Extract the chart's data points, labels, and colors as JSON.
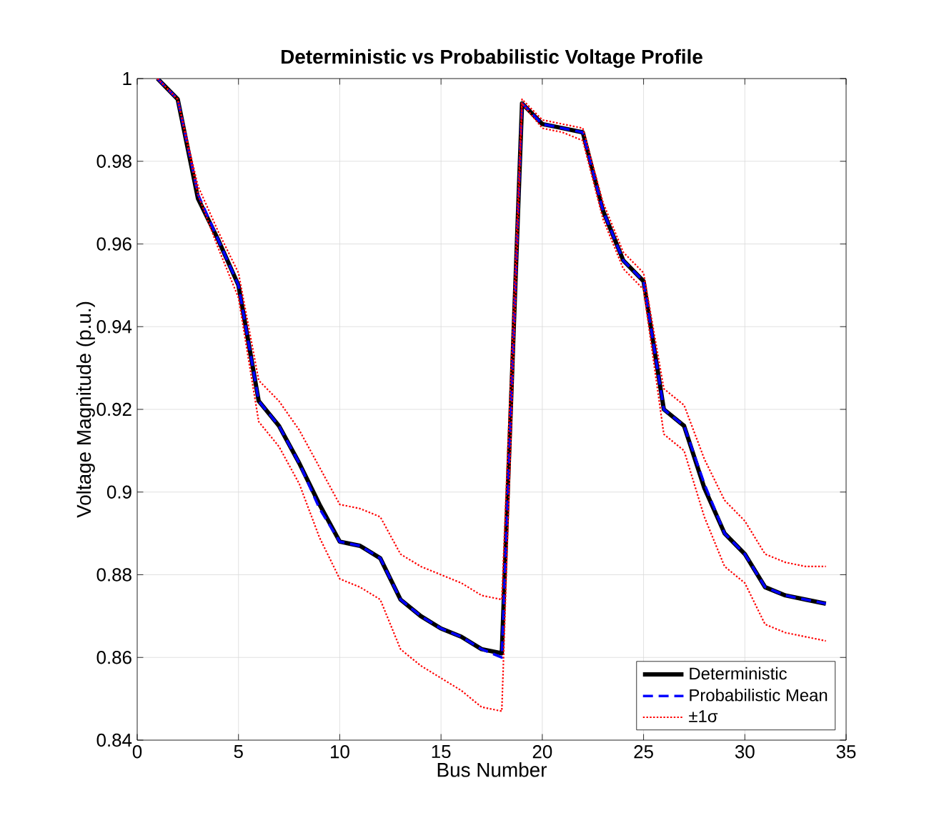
{
  "chart_data": {
    "type": "line",
    "title": "Deterministic vs Probabilistic Voltage Profile",
    "xlabel": "Bus Number",
    "ylabel": "Voltage Magnitude (p.u.)",
    "x": [
      1,
      2,
      3,
      4,
      5,
      6,
      7,
      8,
      9,
      10,
      11,
      12,
      13,
      14,
      15,
      16,
      17,
      18,
      19,
      20,
      21,
      22,
      23,
      24,
      25,
      26,
      27,
      28,
      29,
      30,
      31,
      32,
      33,
      34
    ],
    "series": [
      {
        "name": "Deterministic",
        "color": "#000000",
        "line_style": "solid",
        "values": [
          1.0,
          0.995,
          0.971,
          0.961,
          0.95,
          0.922,
          0.916,
          0.907,
          0.897,
          0.888,
          0.887,
          0.884,
          0.874,
          0.87,
          0.867,
          0.865,
          0.862,
          0.861,
          0.994,
          0.989,
          0.988,
          0.987,
          0.968,
          0.956,
          0.951,
          0.92,
          0.916,
          0.901,
          0.89,
          0.885,
          0.877,
          0.875,
          0.874,
          0.873
        ]
      },
      {
        "name": "Probabilistic Mean",
        "color": "#0000ff",
        "line_style": "dashed",
        "values": [
          1.0,
          0.995,
          0.972,
          0.961,
          0.95,
          0.922,
          0.916,
          0.907,
          0.896,
          0.888,
          0.887,
          0.884,
          0.874,
          0.87,
          0.867,
          0.865,
          0.862,
          0.86,
          0.994,
          0.989,
          0.988,
          0.987,
          0.968,
          0.956,
          0.951,
          0.92,
          0.916,
          0.902,
          0.89,
          0.885,
          0.877,
          0.875,
          0.874,
          0.873
        ]
      },
      {
        "name": "±1σ",
        "color": "#ff0000",
        "line_style": "dotted",
        "values": [
          1.0,
          0.995,
          0.974,
          0.963,
          0.953,
          0.927,
          0.922,
          0.915,
          0.906,
          0.897,
          0.896,
          0.894,
          0.885,
          0.882,
          0.88,
          0.878,
          0.875,
          0.874,
          0.995,
          0.99,
          0.989,
          0.988,
          0.97,
          0.958,
          0.953,
          0.925,
          0.921,
          0.908,
          0.898,
          0.893,
          0.885,
          0.883,
          0.882,
          0.882
        ]
      },
      {
        "color": "#ff0000",
        "line_style": "dotted",
        "values": [
          1.0,
          0.995,
          0.972,
          0.959,
          0.947,
          0.917,
          0.911,
          0.902,
          0.889,
          0.879,
          0.877,
          0.874,
          0.862,
          0.858,
          0.855,
          0.852,
          0.848,
          0.847,
          0.994,
          0.988,
          0.987,
          0.985,
          0.966,
          0.954,
          0.949,
          0.914,
          0.91,
          0.894,
          0.882,
          0.878,
          0.868,
          0.866,
          0.865,
          0.864
        ]
      }
    ],
    "xlim": [
      0,
      35
    ],
    "ylim": [
      0.84,
      1
    ],
    "xticks": [
      0,
      5,
      10,
      15,
      20,
      25,
      30,
      35
    ],
    "yticks": [
      0.84,
      0.86,
      0.88,
      0.9,
      0.92,
      0.94,
      0.96,
      0.98,
      1
    ],
    "grid": true,
    "legend": "bottom right"
  }
}
